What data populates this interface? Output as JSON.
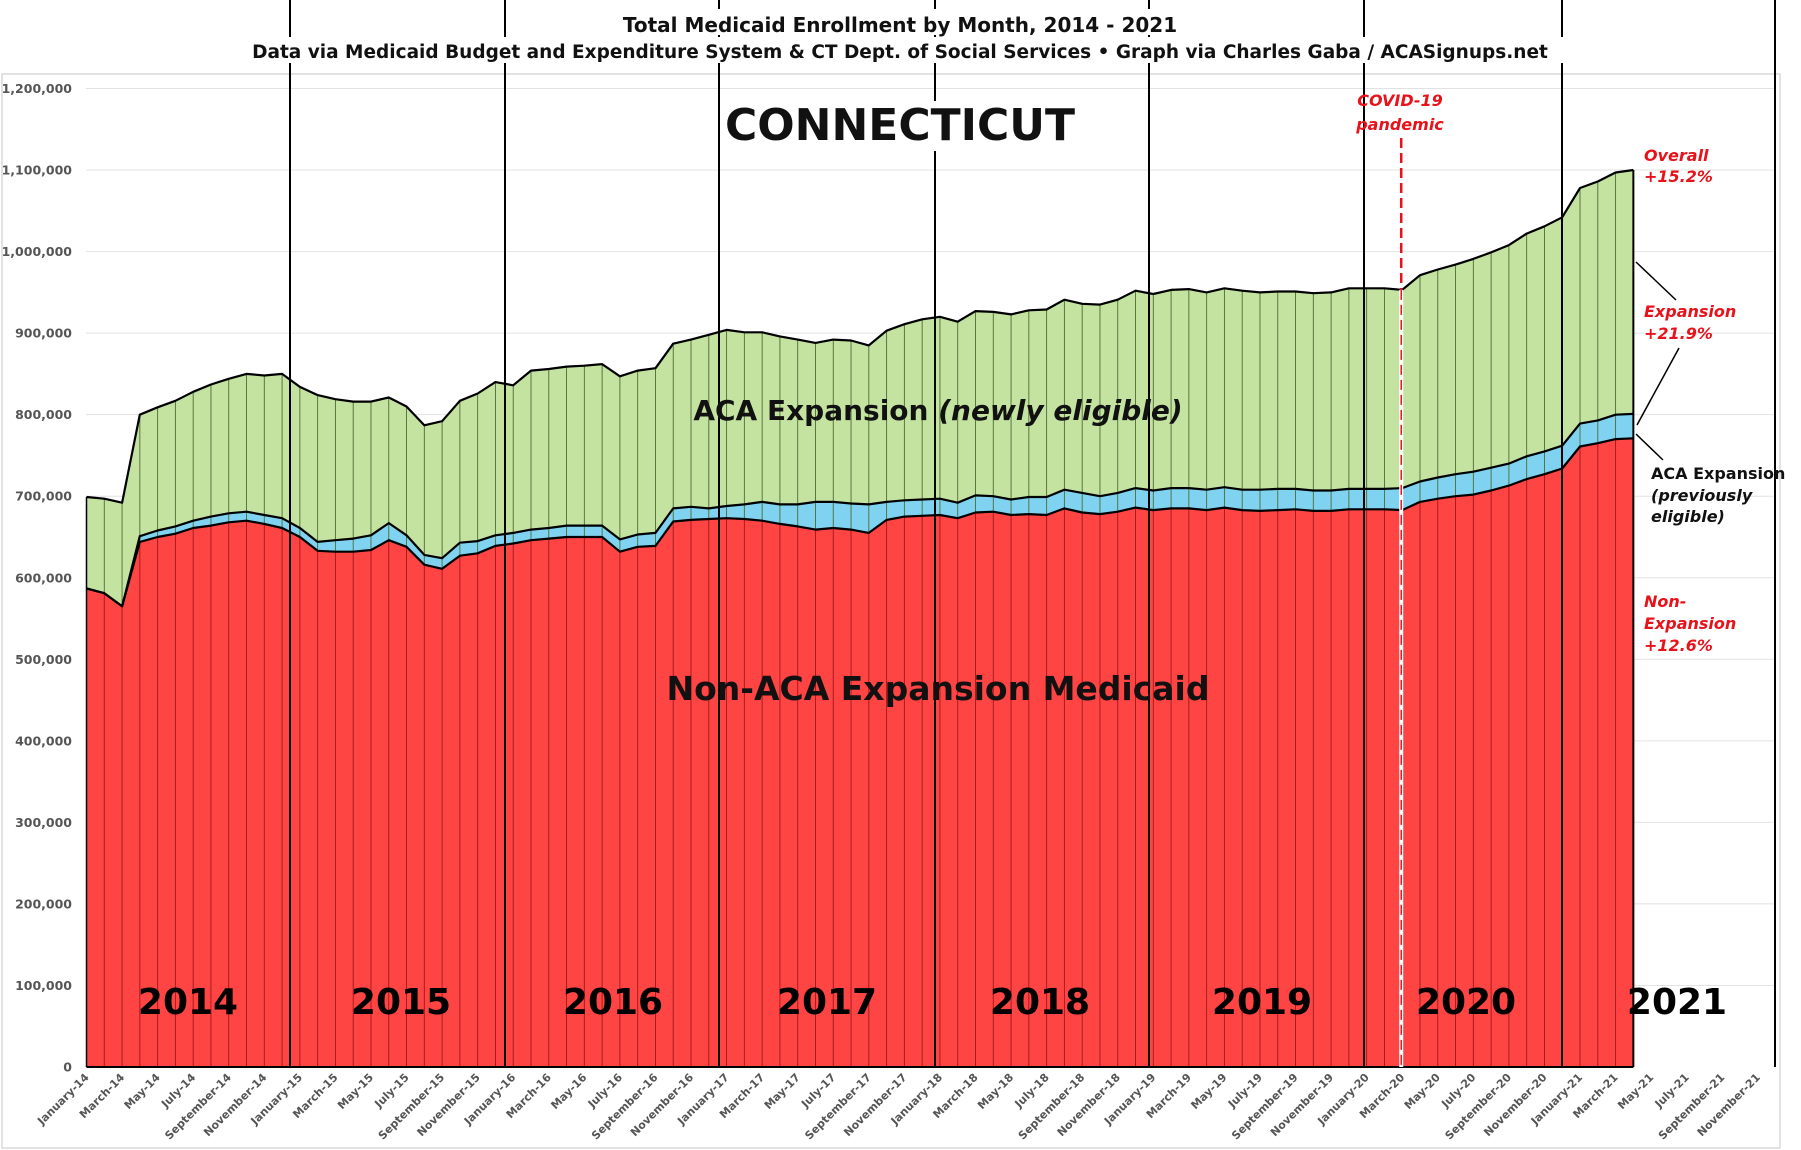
{
  "chart_data": {
    "type": "area",
    "stacked": true,
    "title": "Total Medicaid Enrollment by Month, 2014 - 2021",
    "subtitle": "Data via Medicaid Budget and Expenditure System & CT Dept. of Social Services  •  Graph via Charles Gaba / ACASignups.net",
    "state_label": "CONNECTICUT",
    "xlabel": "",
    "ylabel": "",
    "ylim": [
      0,
      1200000
    ],
    "yticks": [
      0,
      100000,
      200000,
      300000,
      400000,
      500000,
      600000,
      700000,
      800000,
      900000,
      1000000,
      1100000,
      1200000
    ],
    "ytick_labels": [
      "0",
      "100,000",
      "200,000",
      "300,000",
      "400,000",
      "500,000",
      "600,000",
      "700,000",
      "800,000",
      "900,000",
      "1,000,000",
      "1,100,000",
      "1,200,000"
    ],
    "grid": true,
    "x_axis_months": 96,
    "x_start": "January-14",
    "xtick_labels": [
      "January-14",
      "March-14",
      "May-14",
      "July-14",
      "September-14",
      "November-14",
      "January-15",
      "March-15",
      "May-15",
      "July-15",
      "September-15",
      "November-15",
      "January-16",
      "March-16",
      "May-16",
      "July-16",
      "September-16",
      "November-16",
      "January-17",
      "March-17",
      "May-17",
      "July-17",
      "September-17",
      "November-17",
      "January-18",
      "March-18",
      "May-18",
      "July-18",
      "September-18",
      "November-18",
      "January-19",
      "March-19",
      "May-19",
      "July-19",
      "September-19",
      "November-19",
      "January-20",
      "March-20",
      "May-20",
      "July-20",
      "September-20",
      "November-20",
      "January-21",
      "March-21",
      "May-21",
      "July-21",
      "September-21",
      "November-21"
    ],
    "year_labels": [
      "2014",
      "2015",
      "2016",
      "2017",
      "2018",
      "2019",
      "2020",
      "2021"
    ],
    "series": [
      {
        "name": "Non-ACA Expansion Medicaid",
        "color": "#ff4444",
        "values": [
          587000,
          581000,
          565000,
          644000,
          650000,
          654000,
          661000,
          664000,
          668000,
          670000,
          666000,
          661000,
          650000,
          633000,
          632000,
          632000,
          634000,
          646000,
          638000,
          616000,
          611000,
          627000,
          630000,
          639000,
          642000,
          646000,
          648000,
          650000,
          650000,
          650000,
          632000,
          638000,
          639000,
          669000,
          671000,
          672000,
          673000,
          672000,
          670000,
          666000,
          663000,
          659000,
          661000,
          659000,
          655000,
          671000,
          675000,
          676000,
          677000,
          673000,
          680000,
          681000,
          677000,
          678000,
          677000,
          685000,
          680000,
          678000,
          681000,
          686000,
          683000,
          685000,
          685000,
          683000,
          686000,
          683000,
          682000,
          683000,
          684000,
          682000,
          682000,
          684000,
          684000,
          684000,
          683000,
          693000,
          697000,
          700000,
          702000,
          707000,
          713000,
          721000,
          727000,
          734000,
          761000,
          765000,
          770000,
          771000
        ]
      },
      {
        "name": "ACA Expansion (previously eligible)",
        "color": "#7fd3f0",
        "values": [
          0,
          0,
          0,
          7000,
          8000,
          9000,
          9000,
          11000,
          11000,
          11000,
          11000,
          12000,
          11000,
          11000,
          14000,
          16000,
          18000,
          21000,
          14000,
          12000,
          13000,
          16000,
          15000,
          13000,
          13000,
          13000,
          13000,
          14000,
          14000,
          14000,
          15000,
          15000,
          16000,
          16000,
          16000,
          13000,
          15000,
          18000,
          23000,
          24000,
          27000,
          34000,
          32000,
          32000,
          35000,
          22000,
          20000,
          20000,
          20000,
          19000,
          21000,
          19000,
          19000,
          21000,
          22000,
          23000,
          24000,
          22000,
          23000,
          24000,
          24000,
          25000,
          25000,
          25000,
          25000,
          25000,
          26000,
          26000,
          25000,
          25000,
          25000,
          25000,
          25000,
          25000,
          27000,
          25000,
          26000,
          27000,
          28000,
          28000,
          27000,
          28000,
          28000,
          28000,
          28000,
          28000,
          30000,
          30000
        ]
      },
      {
        "name": "ACA Expansion (newly eligible)",
        "color": "#c5e3a0",
        "values": [
          112000,
          116000,
          127000,
          149000,
          151000,
          154000,
          158000,
          162000,
          165000,
          169000,
          171000,
          177000,
          173000,
          180000,
          173000,
          168000,
          164000,
          154000,
          158000,
          159000,
          168000,
          174000,
          181000,
          188000,
          181000,
          195000,
          195000,
          195000,
          196000,
          198000,
          200000,
          201000,
          202000,
          202000,
          205000,
          213000,
          216000,
          211000,
          208000,
          206000,
          202000,
          195000,
          199000,
          200000,
          195000,
          210000,
          216000,
          221000,
          223000,
          222000,
          226000,
          226000,
          227000,
          229000,
          230000,
          233000,
          232000,
          235000,
          237000,
          242000,
          241000,
          243000,
          244000,
          242000,
          244000,
          244000,
          242000,
          242000,
          242000,
          242000,
          243000,
          246000,
          246000,
          246000,
          243000,
          253000,
          255000,
          257000,
          261000,
          264000,
          268000,
          273000,
          276000,
          280000,
          289000,
          293000,
          297000,
          299000
        ]
      }
    ],
    "annotations": {
      "covid_line": {
        "month": "March-20",
        "label_line1": "COVID-19",
        "label_line2": "pandemic",
        "color": "#e8121a"
      },
      "overall": {
        "line1": "Overall",
        "line2": "+15.2%"
      },
      "expansion": {
        "line1": "Expansion",
        "line2": "+21.9%"
      },
      "previously": {
        "line1": "ACA Expansion",
        "line2": "(previously",
        "line3": "eligible)"
      },
      "non_expansion": {
        "line1": "Non-",
        "line2": "Expansion",
        "line3": "+12.6%"
      },
      "green_label_main": "ACA Expansion ",
      "green_label_italic": "(newly eligible)",
      "red_label": "Non-ACA Expansion Medicaid"
    }
  }
}
